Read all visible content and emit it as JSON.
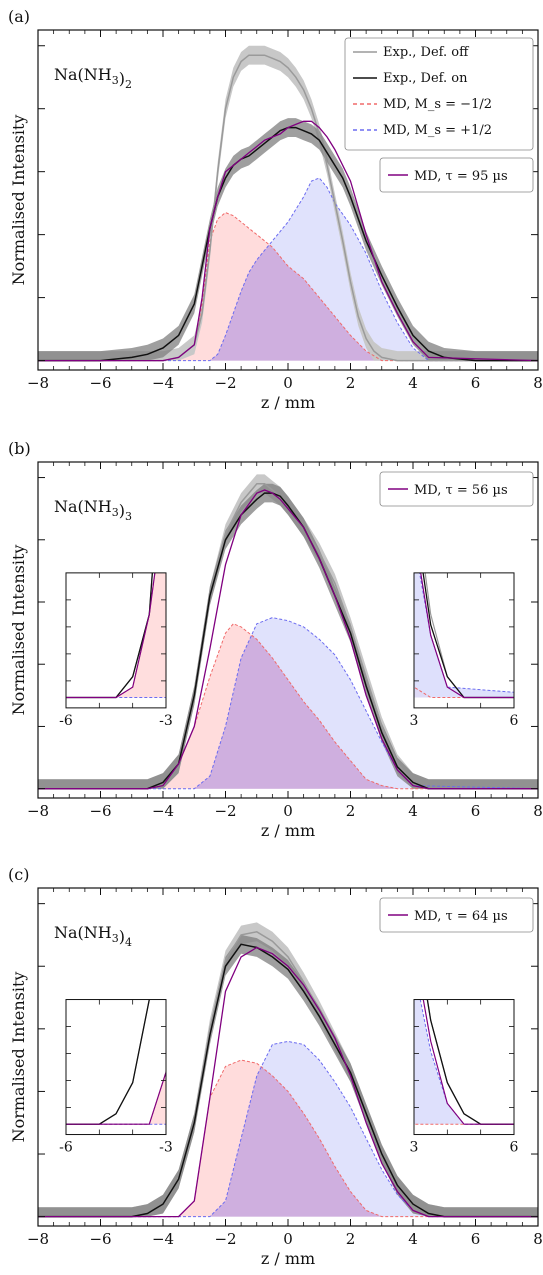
{
  "figure": {
    "x_axis_label": "z / mm",
    "y_axis_label": "Normalised Intensity"
  },
  "legend_common": [
    {
      "label": "Exp., Def. off",
      "color": "#9a9a9a",
      "style": "solid"
    },
    {
      "label": "Exp., Def. on",
      "color": "#111111",
      "style": "solid"
    },
    {
      "label": "MD, M_s = −1/2",
      "color": "#f06a6a",
      "style": "dashed"
    },
    {
      "label": "MD, M_s = +1/2",
      "color": "#6b6bf0",
      "style": "dashed"
    }
  ],
  "colors": {
    "def_off": "#9a9a9a",
    "def_on": "#111111",
    "md_minus_line": "#f06a6a",
    "md_minus_fill": "#ffd6d6",
    "md_plus_line": "#6b6bf0",
    "md_plus_fill": "#d6d8fb",
    "md_total": "#800080",
    "band_dark": "#7f7f7f",
    "band_light": "#c8c8c8"
  },
  "chart_data": [
    {
      "type": "line",
      "panel": "(a)",
      "compound": "Na(NH₃)₂",
      "md_label": "MD, τ = 95 µs",
      "xlabel": "z / mm",
      "ylabel": "Normalised Intensity",
      "xlim": [
        -8,
        8
      ],
      "ylim": [
        -0.03,
        1.05
      ],
      "xticks": [
        -8,
        -6,
        -4,
        -2,
        0,
        2,
        4,
        6,
        8
      ],
      "series": [
        {
          "name": "Exp., Def. off",
          "x": [
            -8,
            -4,
            -3.5,
            -3,
            -2.75,
            -2.5,
            -2.25,
            -2,
            -1.75,
            -1.5,
            -1.25,
            -1,
            -0.75,
            -0.5,
            -0.25,
            0,
            0.25,
            0.5,
            0.75,
            1,
            1.25,
            1.5,
            1.75,
            2,
            2.25,
            2.5,
            2.75,
            3,
            3.5,
            4,
            8
          ],
          "y": [
            0,
            0,
            0.01,
            0.05,
            0.15,
            0.35,
            0.6,
            0.8,
            0.9,
            0.95,
            0.97,
            0.97,
            0.97,
            0.96,
            0.95,
            0.93,
            0.9,
            0.86,
            0.8,
            0.72,
            0.62,
            0.5,
            0.38,
            0.25,
            0.14,
            0.07,
            0.03,
            0.01,
            0,
            0,
            0
          ]
        },
        {
          "name": "Exp., Def. on",
          "x": [
            -8,
            -6,
            -5,
            -4.5,
            -4,
            -3.5,
            -3,
            -2.75,
            -2.5,
            -2.25,
            -2,
            -1.75,
            -1.5,
            -1.25,
            -1,
            -0.75,
            -0.5,
            -0.25,
            0,
            0.25,
            0.5,
            0.75,
            1,
            1.25,
            1.5,
            1.75,
            2,
            2.25,
            2.5,
            3,
            3.5,
            4,
            4.5,
            5,
            6,
            8
          ],
          "y": [
            0,
            0,
            0.01,
            0.02,
            0.04,
            0.08,
            0.18,
            0.3,
            0.42,
            0.52,
            0.58,
            0.62,
            0.64,
            0.65,
            0.67,
            0.69,
            0.71,
            0.73,
            0.74,
            0.74,
            0.73,
            0.72,
            0.7,
            0.66,
            0.62,
            0.58,
            0.52,
            0.45,
            0.38,
            0.27,
            0.17,
            0.08,
            0.03,
            0.01,
            0,
            0
          ]
        },
        {
          "name": "MD, M_s = −1/2",
          "x": [
            -8,
            -4,
            -3.5,
            -3,
            -2.75,
            -2.5,
            -2.25,
            -2,
            -1.75,
            -1.5,
            -1.25,
            -1,
            -0.75,
            -0.5,
            -0.25,
            0,
            0.5,
            1,
            1.5,
            2,
            2.5,
            3,
            8
          ],
          "y": [
            0,
            0,
            0.01,
            0.05,
            0.18,
            0.38,
            0.45,
            0.47,
            0.46,
            0.44,
            0.42,
            0.4,
            0.38,
            0.36,
            0.33,
            0.3,
            0.26,
            0.2,
            0.14,
            0.08,
            0.03,
            0,
            0
          ]
        },
        {
          "name": "MD, M_s = +1/2",
          "x": [
            -8,
            -2.5,
            -2.25,
            -2,
            -1.75,
            -1.5,
            -1.25,
            -1,
            -0.5,
            0,
            0.5,
            0.75,
            1,
            1.25,
            1.5,
            2,
            2.5,
            3,
            3.5,
            4,
            4.5,
            8
          ],
          "y": [
            0,
            0,
            0.02,
            0.08,
            0.15,
            0.22,
            0.28,
            0.32,
            0.38,
            0.44,
            0.52,
            0.57,
            0.58,
            0.55,
            0.5,
            0.43,
            0.34,
            0.22,
            0.12,
            0.04,
            0,
            0
          ]
        },
        {
          "name": "MD total",
          "x": [
            -8,
            -4,
            -3.5,
            -3,
            -2.75,
            -2.5,
            -2.25,
            -2,
            -1.75,
            -1.5,
            -1.25,
            -1,
            -0.75,
            -0.5,
            -0.25,
            0,
            0.25,
            0.5,
            0.75,
            1,
            1.25,
            1.5,
            2,
            2.5,
            3,
            3.5,
            4,
            4.5,
            8
          ],
          "y": [
            0,
            0,
            0.01,
            0.05,
            0.2,
            0.42,
            0.52,
            0.6,
            0.62,
            0.64,
            0.66,
            0.68,
            0.7,
            0.71,
            0.72,
            0.74,
            0.75,
            0.76,
            0.76,
            0.74,
            0.71,
            0.67,
            0.57,
            0.4,
            0.25,
            0.15,
            0.06,
            0.01,
            0
          ]
        }
      ]
    },
    {
      "type": "line",
      "panel": "(b)",
      "compound": "Na(NH₃)₃",
      "md_label": "MD, τ = 56 µs",
      "xlabel": "z / mm",
      "ylabel": "Normalised Intensity",
      "xlim": [
        -8,
        8
      ],
      "ylim": [
        -0.03,
        1.05
      ],
      "xticks": [
        -8,
        -6,
        -4,
        -2,
        0,
        2,
        4,
        6,
        8
      ],
      "series": [
        {
          "name": "Exp., Def. off",
          "x": [
            -8,
            -4.5,
            -4,
            -3.5,
            -3,
            -2.5,
            -2,
            -1.5,
            -1,
            -0.75,
            -0.5,
            -0.25,
            0,
            0.5,
            1,
            1.5,
            2,
            2.5,
            3,
            3.5,
            4,
            4.5,
            8
          ],
          "y": [
            0,
            0,
            0.02,
            0.08,
            0.3,
            0.62,
            0.82,
            0.92,
            0.98,
            0.98,
            0.96,
            0.94,
            0.91,
            0.84,
            0.76,
            0.66,
            0.52,
            0.36,
            0.2,
            0.08,
            0.02,
            0,
            0
          ]
        },
        {
          "name": "Exp., Def. on",
          "x": [
            -8,
            -4.5,
            -4,
            -3.5,
            -3,
            -2.5,
            -2,
            -1.5,
            -1,
            -0.75,
            -0.5,
            -0.25,
            0,
            0.5,
            1,
            1.5,
            2,
            2.5,
            3,
            3.5,
            4,
            4.5,
            8
          ],
          "y": [
            0,
            0,
            0.02,
            0.08,
            0.3,
            0.62,
            0.8,
            0.88,
            0.93,
            0.95,
            0.95,
            0.94,
            0.91,
            0.84,
            0.74,
            0.62,
            0.5,
            0.33,
            0.18,
            0.07,
            0.02,
            0,
            0
          ]
        },
        {
          "name": "MD, M_s = −1/2",
          "x": [
            -8,
            -4.5,
            -4,
            -3.5,
            -3,
            -2.5,
            -2,
            -1.75,
            -1.5,
            -1,
            -0.5,
            0,
            0.5,
            1,
            1.5,
            2,
            2.5,
            3,
            3.5,
            8
          ],
          "y": [
            0,
            0,
            0.01,
            0.08,
            0.2,
            0.36,
            0.5,
            0.53,
            0.52,
            0.48,
            0.42,
            0.35,
            0.28,
            0.22,
            0.15,
            0.09,
            0.03,
            0.01,
            0,
            0
          ]
        },
        {
          "name": "MD, M_s = +1/2",
          "x": [
            -8,
            -3,
            -2.5,
            -2,
            -1.5,
            -1,
            -0.5,
            0,
            0.5,
            1,
            1.5,
            2,
            2.5,
            3,
            3.5,
            4,
            8
          ],
          "y": [
            0,
            0,
            0.04,
            0.2,
            0.42,
            0.53,
            0.55,
            0.54,
            0.52,
            0.48,
            0.43,
            0.35,
            0.25,
            0.15,
            0.06,
            0.01,
            0
          ]
        },
        {
          "name": "MD total",
          "x": [
            -8,
            -4.5,
            -4,
            -3.5,
            -3,
            -2.5,
            -2,
            -1.5,
            -1,
            -0.75,
            -0.5,
            -0.25,
            0,
            0.5,
            1,
            1.5,
            2,
            2.5,
            3,
            3.5,
            4,
            4.5,
            8
          ],
          "y": [
            0,
            0,
            0.01,
            0.08,
            0.2,
            0.45,
            0.72,
            0.88,
            0.95,
            0.96,
            0.95,
            0.93,
            0.9,
            0.84,
            0.74,
            0.62,
            0.48,
            0.3,
            0.16,
            0.06,
            0.01,
            0,
            0
          ]
        }
      ]
    },
    {
      "type": "line",
      "panel": "(c)",
      "compound": "Na(NH₃)₄",
      "md_label": "MD, τ = 64 µs",
      "xlabel": "z / mm",
      "ylabel": "Normalised Intensity",
      "xlim": [
        -8,
        8
      ],
      "ylim": [
        -0.03,
        1.05
      ],
      "xticks": [
        -8,
        -6,
        -4,
        -2,
        0,
        2,
        4,
        6,
        8
      ],
      "series": [
        {
          "name": "Exp., Def. off",
          "x": [
            -8,
            -5,
            -4.5,
            -4,
            -3.5,
            -3,
            -2.5,
            -2,
            -1.5,
            -1,
            -0.5,
            0,
            0.5,
            1,
            1.5,
            2,
            2.5,
            3,
            3.5,
            4,
            4.5,
            5,
            8
          ],
          "y": [
            0,
            0,
            0.01,
            0.04,
            0.12,
            0.3,
            0.6,
            0.82,
            0.9,
            0.91,
            0.88,
            0.83,
            0.75,
            0.66,
            0.56,
            0.46,
            0.33,
            0.2,
            0.1,
            0.04,
            0.01,
            0,
            0
          ]
        },
        {
          "name": "Exp., Def. on",
          "x": [
            -8,
            -5,
            -4.5,
            -4,
            -3.5,
            -3,
            -2.5,
            -2,
            -1.5,
            -1,
            -0.5,
            0,
            0.5,
            1,
            1.5,
            2,
            2.5,
            3,
            3.5,
            4,
            4.5,
            5,
            8
          ],
          "y": [
            0,
            0,
            0.01,
            0.04,
            0.12,
            0.3,
            0.58,
            0.8,
            0.87,
            0.86,
            0.83,
            0.79,
            0.72,
            0.64,
            0.55,
            0.46,
            0.33,
            0.2,
            0.1,
            0.04,
            0.01,
            0,
            0
          ]
        },
        {
          "name": "MD, M_s = −1/2",
          "x": [
            -8,
            -3.5,
            -3,
            -2.5,
            -2,
            -1.5,
            -1,
            -0.5,
            0,
            0.5,
            1,
            1.5,
            2,
            2.5,
            3,
            8
          ],
          "y": [
            0,
            0,
            0.05,
            0.38,
            0.48,
            0.5,
            0.49,
            0.45,
            0.4,
            0.33,
            0.25,
            0.16,
            0.08,
            0.02,
            0,
            0
          ]
        },
        {
          "name": "MD, M_s = +1/2",
          "x": [
            -8,
            -2.5,
            -2,
            -1.5,
            -1,
            -0.5,
            0,
            0.5,
            1,
            1.5,
            2,
            2.5,
            3,
            3.5,
            4,
            4.5,
            8
          ],
          "y": [
            0,
            0,
            0.05,
            0.25,
            0.45,
            0.55,
            0.56,
            0.55,
            0.5,
            0.43,
            0.35,
            0.25,
            0.15,
            0.07,
            0.02,
            0,
            0
          ]
        },
        {
          "name": "MD total",
          "x": [
            -8,
            -3.5,
            -3,
            -2.5,
            -2,
            -1.5,
            -1,
            -0.5,
            0,
            0.5,
            1,
            1.5,
            2,
            2.5,
            3,
            3.5,
            4,
            4.5,
            8
          ],
          "y": [
            0,
            0,
            0.05,
            0.38,
            0.72,
            0.83,
            0.86,
            0.84,
            0.8,
            0.74,
            0.66,
            0.57,
            0.45,
            0.3,
            0.17,
            0.08,
            0.02,
            0,
            0
          ]
        }
      ],
      "insets": [
        {
          "side": "left",
          "xlim": [
            -6,
            -3
          ],
          "xtick_labels": [
            "-6",
            "-3"
          ]
        },
        {
          "side": "right",
          "xlim": [
            3,
            6
          ],
          "xtick_labels": [
            "3",
            "6"
          ]
        }
      ]
    }
  ],
  "insets_b": [
    {
      "side": "left",
      "xlim": [
        -6,
        -3
      ],
      "xtick_labels": [
        "-6",
        "-3"
      ]
    },
    {
      "side": "right",
      "xlim": [
        3,
        6
      ],
      "xtick_labels": [
        "3",
        "6"
      ]
    }
  ]
}
